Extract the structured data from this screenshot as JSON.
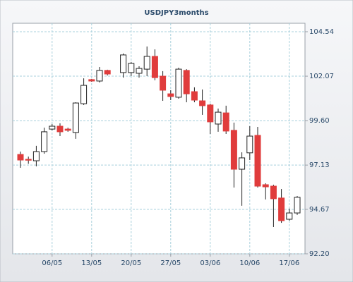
{
  "chart_data": {
    "type": "candlestick",
    "title": "USDJPY3months",
    "categories": [
      null,
      null,
      null,
      null,
      "06/05",
      null,
      null,
      null,
      null,
      "13/05",
      null,
      null,
      null,
      null,
      "20/05",
      null,
      null,
      null,
      null,
      "27/05",
      null,
      null,
      null,
      null,
      "03/06",
      null,
      null,
      null,
      null,
      "10/06",
      null,
      null,
      null,
      null,
      "17/06",
      null
    ],
    "series": [
      {
        "up_color": "#ffffff",
        "down_color": "#e03c3c",
        "open": [
          97.72,
          97.45,
          97.37,
          97.88,
          99.13,
          99.29,
          99.13,
          98.94,
          100.54,
          101.88,
          101.8,
          102.39,
          null,
          102.27,
          102.27,
          102.23,
          102.46,
          103.17,
          102.07,
          101.09,
          100.9,
          102.39,
          101.21,
          100.7,
          100.47,
          99.41,
          100.03,
          99.06,
          96.9,
          97.81,
          98.78,
          96.04,
          95.96,
          95.3,
          94.12,
          94.47
        ],
        "high": [
          97.88,
          97.6,
          98.2,
          99.21,
          99.41,
          99.45,
          99.21,
          100.62,
          101.95,
          101.92,
          102.58,
          102.43,
          null,
          103.33,
          102.86,
          102.62,
          103.72,
          103.56,
          102.35,
          101.29,
          102.54,
          102.46,
          101.45,
          101.33,
          100.54,
          100.27,
          100.43,
          99.49,
          97.84,
          99.29,
          99.25,
          96.12,
          96.04,
          95.8,
          94.71,
          95.41
        ],
        "low": [
          96.98,
          97.2,
          97.06,
          97.76,
          99.06,
          98.74,
          98.98,
          98.59,
          100.47,
          101.76,
          101.72,
          102.11,
          null,
          101.99,
          102.07,
          101.99,
          102.07,
          101.84,
          100.7,
          100.74,
          100.82,
          100.62,
          100.62,
          99.92,
          98.86,
          98.98,
          98.86,
          95.88,
          94.87,
          97.41,
          95.88,
          95.22,
          93.69,
          93.92,
          94.04,
          94.36
        ],
        "close": [
          97.41,
          97.4,
          97.88,
          98.98,
          99.29,
          98.98,
          99.06,
          100.58,
          101.56,
          101.8,
          102.39,
          102.19,
          null,
          103.25,
          102.78,
          102.5,
          103.17,
          101.99,
          101.29,
          100.94,
          102.46,
          101.09,
          100.74,
          100.43,
          99.53,
          100.07,
          99.02,
          96.9,
          97.53,
          98.74,
          95.96,
          95.92,
          95.26,
          94.04,
          94.47,
          95.34
        ]
      }
    ],
    "ylim": [
      92.2,
      105.01
    ],
    "yticks": [
      {
        "value": 92.2,
        "label": "92.20"
      },
      94.67,
      97.13,
      {
        "value": 99.6,
        "label": "99.60"
      },
      102.07,
      104.54
    ],
    "grid": true
  }
}
